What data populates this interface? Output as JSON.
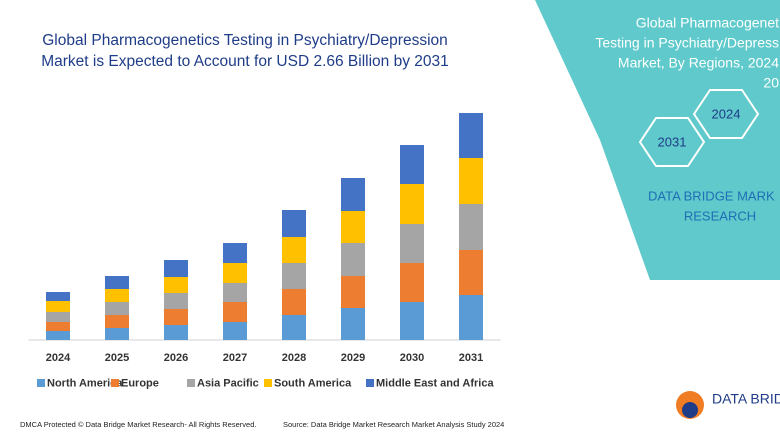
{
  "chart_data": {
    "type": "stacked_bar",
    "title": "Global Pharmacogenetics Testing in Psychiatry/Depression Market is Expected to Account for USD 2.66 Billion by 2031",
    "categories": [
      "2024",
      "2025",
      "2026",
      "2027",
      "2028",
      "2029",
      "2030",
      "2031"
    ],
    "series": [
      {
        "name": "North America",
        "color": "#5b9bd5",
        "values": [
          9,
          12,
          15,
          18,
          25,
          32,
          38,
          45
        ]
      },
      {
        "name": "Europe",
        "color": "#ed7d31",
        "values": [
          9,
          13,
          16,
          20,
          26,
          32,
          39,
          45
        ]
      },
      {
        "name": "Asia Pacific",
        "color": "#a5a5a5",
        "values": [
          10,
          13,
          16,
          19,
          26,
          33,
          39,
          46
        ]
      },
      {
        "name": "South America",
        "color": "#ffc000",
        "values": [
          11,
          13,
          16,
          20,
          26,
          32,
          40,
          46
        ]
      },
      {
        "name": "Middle East and Africa",
        "color": "#4472c4",
        "values": [
          9,
          13,
          17,
          20,
          27,
          33,
          39,
          45
        ]
      }
    ],
    "ylim": [
      0,
      230
    ]
  },
  "panel": {
    "title_lines": [
      "Global Pharmacogenet",
      "Testing in Psychiatry/Depress",
      "Market, By Regions, 2024",
      "20"
    ],
    "hex_labels": [
      "2024",
      "2031"
    ],
    "brand_lines": [
      "DATA BRIDGE MARK",
      "RESEARCH"
    ]
  },
  "logo": "DATA BRIDG",
  "footer": {
    "left": "DMCA Protected © Data Bridge Market Research- All Rights Reserved.",
    "right": "Source: Data Bridge Market Research Market Analysis Study 2024"
  }
}
